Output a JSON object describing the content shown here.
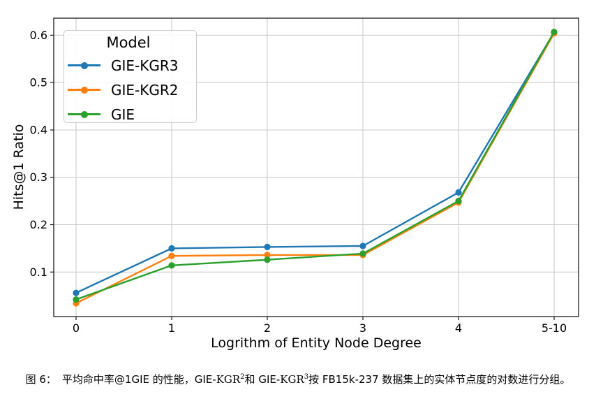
{
  "figure": {
    "caption": {
      "label": "图 6：",
      "part1": "平均命中率@1GIE 的性能，GIE-",
      "kgr1": "KGR",
      "sup1": "2",
      "part2": "和 GIE-",
      "kgr2": "KGR",
      "sup2": "3",
      "part3": "按 FB15k-237 数据集上的实体节点度的对数进行分组。"
    }
  },
  "chart_data": {
    "type": "line",
    "title": "",
    "xlabel": "Logrithm of Entity Node Degree",
    "ylabel": "Hits@1 Ratio",
    "legend_title": "Model",
    "legend_position": "upper left",
    "grid": true,
    "categories": [
      "0",
      "1",
      "2",
      "3",
      "4",
      "5-10"
    ],
    "series": [
      {
        "name": "GIE-KGR3",
        "color": "#1f77b4",
        "values": [
          0.056,
          0.15,
          0.153,
          0.155,
          0.268,
          0.606
        ]
      },
      {
        "name": "GIE-KGR2",
        "color": "#ff7f0e",
        "values": [
          0.034,
          0.134,
          0.136,
          0.136,
          0.247,
          0.604
        ]
      },
      {
        "name": "GIE",
        "color": "#2ca02c",
        "values": [
          0.042,
          0.114,
          0.126,
          0.139,
          0.25,
          0.607
        ]
      }
    ],
    "yticks": [
      0.1,
      0.2,
      0.3,
      0.4,
      0.5,
      0.6
    ],
    "ylim": [
      0.006,
      0.636
    ],
    "grid_color": "#cccccc",
    "spine_color": "#1a1a1a",
    "marker": "circle"
  }
}
